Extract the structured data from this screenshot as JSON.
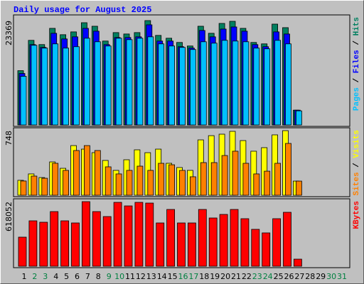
{
  "chart_data": [
    {
      "type": "bar",
      "title": "Daily usage for August 2025",
      "ylim": [
        0,
        23369
      ],
      "yticks": [
        23369
      ],
      "legend_separator": "/",
      "series": [
        {
          "name": "Hits",
          "color": "#008060",
          "values": [
            12158,
            18947,
            18000,
            21632,
            20211,
            20842,
            22895,
            22105,
            18790,
            20684,
            20369,
            20684,
            23369,
            20053,
            19421,
            18474,
            17684,
            22105,
            20526,
            22737,
            23211,
            21632,
            18474,
            18158,
            22579,
            21790,
            3316,
            0,
            0,
            0,
            0
          ]
        },
        {
          "name": "Files",
          "color": "#0000ff",
          "values": [
            11526,
            18000,
            17368,
            20526,
            19263,
            19737,
            21632,
            21000,
            18000,
            19579,
            19579,
            19737,
            22421,
            18790,
            18790,
            17526,
            17211,
            21158,
            19737,
            21474,
            21947,
            21000,
            18000,
            17526,
            20842,
            20368,
            3316,
            0,
            0,
            0,
            0
          ]
        },
        {
          "name": "Pages",
          "color": "#00c0ff",
          "values": [
            10895,
            17842,
            17211,
            18158,
            17211,
            17526,
            19421,
            18632,
            17684,
            19421,
            19105,
            19421,
            19737,
            18158,
            17684,
            17368,
            16895,
            18632,
            18316,
            18947,
            18790,
            18632,
            17211,
            17053,
            18947,
            18158,
            3158,
            0,
            0,
            0,
            0
          ]
        }
      ]
    },
    {
      "type": "bar",
      "ylim": [
        0,
        748
      ],
      "yticks": [
        748
      ],
      "legend_separator": "/",
      "series": [
        {
          "name": "Visits",
          "color": "#ffff00",
          "values": [
            173,
            247,
            205,
            386,
            312,
            575,
            534,
            493,
            403,
            288,
            411,
            526,
            493,
            534,
            370,
            321,
            288,
            641,
            690,
            707,
            740,
            633,
            510,
            551,
            699,
            748,
            164,
            0,
            0,
            0,
            0
          ]
        },
        {
          "name": "Sites",
          "color": "#ff8000",
          "values": [
            165,
            222,
            197,
            370,
            288,
            518,
            575,
            518,
            329,
            247,
            288,
            337,
            288,
            370,
            353,
            288,
            214,
            378,
            378,
            460,
            510,
            370,
            247,
            279,
            370,
            600,
            164,
            0,
            0,
            0,
            0
          ]
        }
      ]
    },
    {
      "type": "bar",
      "ylim": [
        0,
        618052
      ],
      "yticks": [
        618052
      ],
      "series": [
        {
          "name": "KBytes",
          "color": "#ff0000",
          "values": [
            278463,
            434673,
            421090,
            522967,
            434673,
            414298,
            618052,
            522967,
            475425,
            611260,
            577301,
            611260,
            604468,
            414298,
            543342,
            414298,
            414298,
            543342,
            461841,
            495800,
            543342,
            455049,
            353173,
            319214,
            455049,
            516175,
            67918,
            0,
            0,
            0,
            0
          ]
        }
      ],
      "categories": [
        "1",
        "2",
        "3",
        "4",
        "5",
        "6",
        "7",
        "8",
        "9",
        "10",
        "11",
        "12",
        "13",
        "14",
        "15",
        "16",
        "17",
        "18",
        "19",
        "20",
        "21",
        "22",
        "23",
        "24",
        "25",
        "26",
        "27",
        "28",
        "29",
        "30",
        "31"
      ],
      "category_colors": [
        "#000000",
        "#008040",
        "#008040",
        "#000000",
        "#000000",
        "#000000",
        "#000000",
        "#000000",
        "#008040",
        "#008040",
        "#000000",
        "#000000",
        "#000000",
        "#000000",
        "#000000",
        "#008040",
        "#008040",
        "#000000",
        "#000000",
        "#000000",
        "#000000",
        "#000000",
        "#008040",
        "#008040",
        "#000000",
        "#000000",
        "#000000",
        "#000000",
        "#000000",
        "#008040",
        "#008040"
      ]
    }
  ]
}
